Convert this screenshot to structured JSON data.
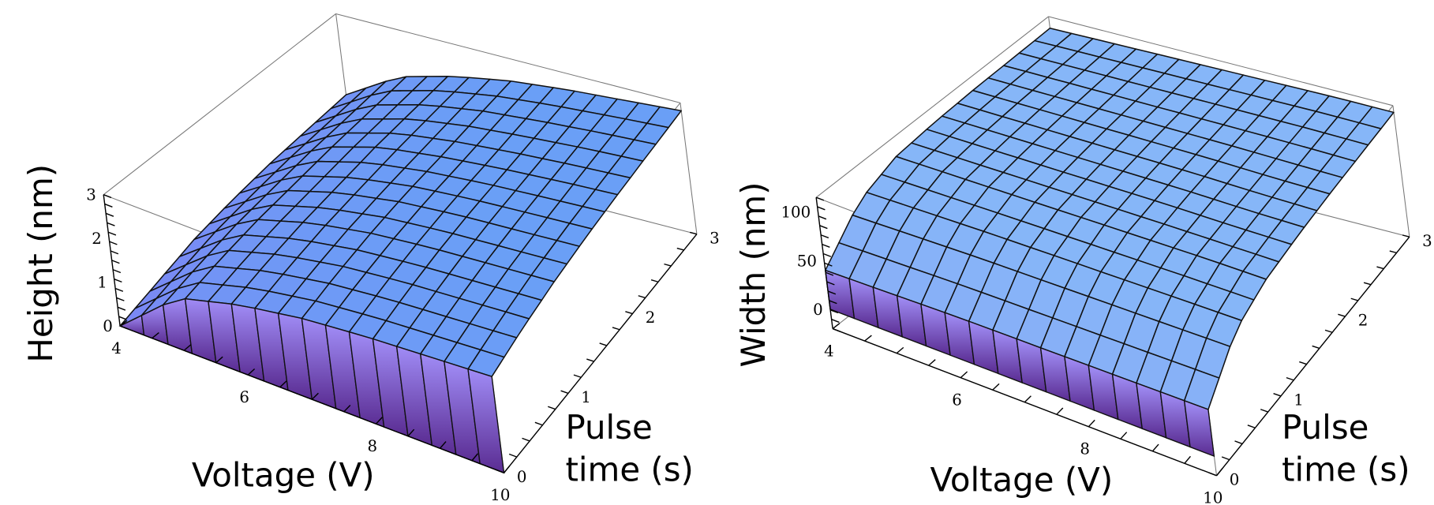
{
  "chart_data": [
    {
      "type": "surface3d",
      "title": "",
      "xlabel": "Voltage (V)",
      "ylabel_lines": [
        "Pulse",
        "time (s)"
      ],
      "zlabel": "Height (nm)",
      "xlim": [
        4,
        10
      ],
      "ylim": [
        0,
        3
      ],
      "zlim": [
        0,
        3
      ],
      "xticks": [
        "4",
        "6",
        "8",
        "10"
      ],
      "xtick_values": [
        4,
        6,
        8,
        10
      ],
      "yticks": [
        "0",
        "1",
        "2",
        "3"
      ],
      "ytick_values": [
        0,
        1,
        2,
        3
      ],
      "zticks": [
        "0",
        "1",
        "2",
        "3"
      ],
      "ztick_values": [
        0,
        1,
        2,
        3
      ],
      "x": [
        4,
        5,
        6,
        7,
        8,
        9,
        10
      ],
      "y": [
        0,
        0.5,
        1,
        1.5,
        2,
        2.5,
        3
      ],
      "z": [
        [
          0.0,
          1.2,
          1.6,
          1.85,
          2.0,
          2.1,
          2.2
        ],
        [
          0.3,
          1.4,
          1.8,
          2.05,
          2.2,
          2.3,
          2.4
        ],
        [
          0.6,
          1.55,
          1.95,
          2.2,
          2.35,
          2.45,
          2.55
        ],
        [
          0.8,
          1.65,
          2.05,
          2.3,
          2.45,
          2.55,
          2.65
        ],
        [
          0.95,
          1.75,
          2.15,
          2.35,
          2.5,
          2.62,
          2.72
        ],
        [
          1.05,
          1.82,
          2.2,
          2.42,
          2.56,
          2.68,
          2.77
        ],
        [
          1.15,
          1.9,
          2.25,
          2.48,
          2.62,
          2.72,
          2.82
        ]
      ],
      "colors": {
        "surface_low": "#7c86f4",
        "surface_high": "#6a9ff6",
        "wall_top": "#a08cf6",
        "wall_bottom": "#5a2c92"
      }
    },
    {
      "type": "surface3d",
      "title": "",
      "xlabel": "Voltage (V)",
      "ylabel_lines": [
        "Pulse",
        "time (s)"
      ],
      "zlabel": "Width (nm)",
      "xlim": [
        4,
        10
      ],
      "ylim": [
        0,
        3
      ],
      "zlim": [
        -20,
        115
      ],
      "xticks": [
        "4",
        "6",
        "8",
        "10"
      ],
      "xtick_values": [
        4,
        6,
        8,
        10
      ],
      "yticks": [
        "0",
        "1",
        "2",
        "3"
      ],
      "ytick_values": [
        0,
        1,
        2,
        3
      ],
      "zticks": [
        "0",
        "50",
        "100"
      ],
      "ztick_values": [
        0,
        50,
        100
      ],
      "x": [
        4,
        5,
        6,
        7,
        8,
        9,
        10
      ],
      "y": [
        0,
        0.5,
        1,
        1.5,
        2,
        2.5,
        3
      ],
      "z": [
        [
          40,
          42,
          44,
          45,
          46,
          47,
          48
        ],
        [
          80,
          82,
          84,
          85,
          86,
          87,
          88
        ],
        [
          95,
          96,
          97,
          98,
          99,
          100,
          100
        ],
        [
          99,
          100,
          101,
          102,
          103,
          103,
          104
        ],
        [
          101,
          102,
          103,
          104,
          105,
          105,
          106
        ],
        [
          102,
          103,
          104,
          105,
          106,
          107,
          107
        ],
        [
          103,
          104,
          105,
          106,
          107,
          108,
          108
        ]
      ],
      "colors": {
        "surface_low": "#8aa6f6",
        "surface_high": "#86b6f8",
        "wall_top": "#a290f8",
        "wall_bottom": "#5a2c92"
      }
    }
  ]
}
